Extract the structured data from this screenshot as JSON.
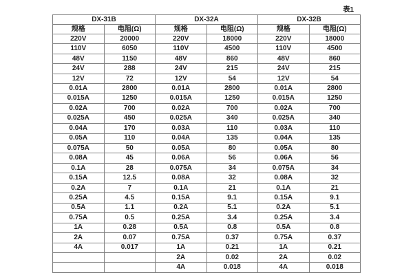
{
  "caption": "表1",
  "table": {
    "groups": [
      {
        "name": "DX-31B",
        "spec_header": "规格",
        "res_header": "电阻(Ω)",
        "rows": [
          [
            "220V",
            "20000"
          ],
          [
            "110V",
            "6050"
          ],
          [
            "48V",
            "1150"
          ],
          [
            "24V",
            "288"
          ],
          [
            "12V",
            "72"
          ],
          [
            "0.01A",
            "2800"
          ],
          [
            "0.015A",
            "1250"
          ],
          [
            "0.02A",
            "700"
          ],
          [
            "0.025A",
            "450"
          ],
          [
            "0.04A",
            "170"
          ],
          [
            "0.05A",
            "110"
          ],
          [
            "0.075A",
            "50"
          ],
          [
            "0.08A",
            "45"
          ],
          [
            "0.1A",
            "28"
          ],
          [
            "0.15A",
            "12.5"
          ],
          [
            "0.2A",
            "7"
          ],
          [
            "0.25A",
            "4.5"
          ],
          [
            "0.5A",
            "1.1"
          ],
          [
            "0.75A",
            "0.5"
          ],
          [
            "1A",
            "0.28"
          ],
          [
            "2A",
            "0.07"
          ],
          [
            "4A",
            "0.017"
          ],
          [
            "",
            ""
          ],
          [
            "",
            ""
          ]
        ]
      },
      {
        "name": "DX-32A",
        "spec_header": "规格",
        "res_header": "电阻(Ω)",
        "rows": [
          [
            "220V",
            "18000"
          ],
          [
            "110V",
            "4500"
          ],
          [
            "48V",
            "860"
          ],
          [
            "24V",
            "215"
          ],
          [
            "12V",
            "54"
          ],
          [
            "0.01A",
            "2800"
          ],
          [
            "0.015A",
            "1250"
          ],
          [
            "0.02A",
            "700"
          ],
          [
            "0.025A",
            "340"
          ],
          [
            "0.03A",
            "110"
          ],
          [
            "0.04A",
            "135"
          ],
          [
            "0.05A",
            "80"
          ],
          [
            "0.06A",
            "56"
          ],
          [
            "0.075A",
            "34"
          ],
          [
            "0.08A",
            "32"
          ],
          [
            "0.1A",
            "21"
          ],
          [
            "0.15A",
            "9.1"
          ],
          [
            "0.2A",
            "5.1"
          ],
          [
            "0.25A",
            "3.4"
          ],
          [
            "0.5A",
            "0.8"
          ],
          [
            "0.75A",
            "0.37"
          ],
          [
            "1A",
            "0.21"
          ],
          [
            "2A",
            "0.02"
          ],
          [
            "4A",
            "0.018"
          ]
        ]
      },
      {
        "name": "DX-32B",
        "spec_header": "规格",
        "res_header": "电阻(Ω)",
        "rows": [
          [
            "220V",
            "18000"
          ],
          [
            "110V",
            "4500"
          ],
          [
            "48V",
            "860"
          ],
          [
            "24V",
            "215"
          ],
          [
            "12V",
            "54"
          ],
          [
            "0.01A",
            "2800"
          ],
          [
            "0.015A",
            "1250"
          ],
          [
            "0.02A",
            "700"
          ],
          [
            "0.025A",
            "340"
          ],
          [
            "0.03A",
            "110"
          ],
          [
            "0.04A",
            "135"
          ],
          [
            "0.05A",
            "80"
          ],
          [
            "0.06A",
            "56"
          ],
          [
            "0.075A",
            "34"
          ],
          [
            "0.08A",
            "32"
          ],
          [
            "0.1A",
            "21"
          ],
          [
            "0.15A",
            "9.1"
          ],
          [
            "0.2A",
            "5.1"
          ],
          [
            "0.25A",
            "3.4"
          ],
          [
            "0.5A",
            "0.8"
          ],
          [
            "0.75A",
            "0.37"
          ],
          [
            "1A",
            "0.21"
          ],
          [
            "2A",
            "0.02"
          ],
          [
            "4A",
            "0.018"
          ]
        ]
      }
    ]
  },
  "colors": {
    "background": "#ffffff",
    "border_inner": "#808080",
    "border_outer": "#666666",
    "text": "#1f1f1f"
  }
}
